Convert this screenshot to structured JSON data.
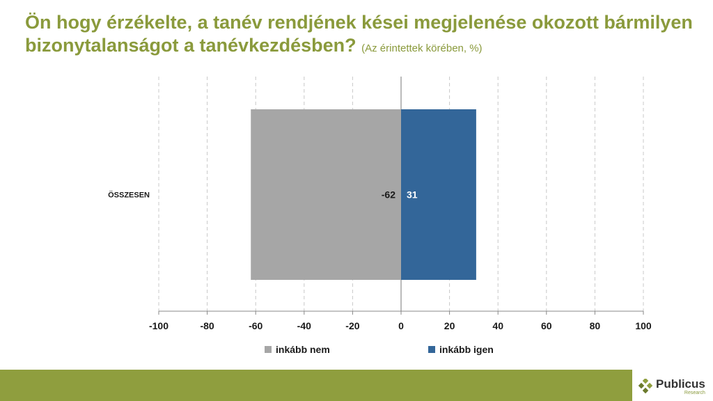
{
  "title": {
    "main": "Ön hogy érzékelte, a tanév rendjének kései megjelenése okozott bármilyen bizonytalanságot a tanévkezdésben?",
    "sub": "(Az érintettek körében, %)"
  },
  "colors": {
    "title": "#8a9a3c",
    "footer": "#8f9e3e",
    "inkabb_nem": "#a6a6a6",
    "inkabb_igen": "#336699"
  },
  "chart_data": {
    "type": "bar",
    "orientation": "horizontal",
    "stacked": "diverging",
    "categories": [
      "ÖSSZESEN"
    ],
    "series": [
      {
        "name": "inkább nem",
        "values": [
          -62
        ],
        "labels": [
          "-62"
        ]
      },
      {
        "name": "inkább igen",
        "values": [
          31
        ],
        "labels": [
          "31"
        ]
      }
    ],
    "xlim": [
      -100,
      100
    ],
    "xticks": [
      -100,
      -80,
      -60,
      -40,
      -20,
      0,
      20,
      40,
      60,
      80,
      100
    ],
    "grid": "vertical dashed",
    "legend": "bottom"
  },
  "logo": {
    "name": "Publicus",
    "subname": "Research",
    "icon": "diamond-cluster-icon"
  }
}
